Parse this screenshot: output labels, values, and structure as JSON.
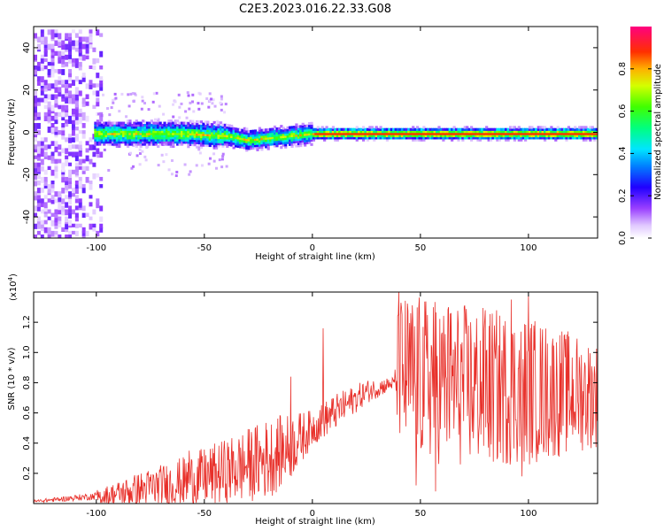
{
  "title": "C2E3.2023.016.22.33.G08",
  "chart_data": [
    {
      "type": "heatmap",
      "xlabel": "Height of straight line (km)",
      "ylabel": "Frequency (Hz)",
      "xlim": [
        -129,
        132
      ],
      "ylim": [
        -50,
        50
      ],
      "xticks": [
        -100,
        -50,
        0,
        50,
        100
      ],
      "yticks": [
        -40,
        -20,
        0,
        20,
        40
      ],
      "colorbar": {
        "label": "Normalized spectral amplitude",
        "range": [
          0,
          1
        ],
        "ticks": [
          "0.0",
          "0.2",
          "0.4",
          "0.6",
          "0.8"
        ],
        "colormap": [
          "#ffffff",
          "#d9b3ff",
          "#8a2be2",
          "#0000ff",
          "#00ccff",
          "#00ff66",
          "#ccff00",
          "#ff9900",
          "#ff0000",
          "#ff0099"
        ]
      },
      "ridge_center_hz": [
        [
          -100,
          0
        ],
        [
          -80,
          0
        ],
        [
          -60,
          0
        ],
        [
          -40,
          -1
        ],
        [
          -30,
          -3
        ],
        [
          -20,
          -2
        ],
        [
          -10,
          -1
        ],
        [
          0,
          0
        ],
        [
          50,
          0
        ],
        [
          132,
          0
        ]
      ],
      "noise_region_km": [
        -129,
        -100
      ]
    },
    {
      "type": "line",
      "xlabel": "Height of straight line (km)",
      "ylabel": "SNR (10 * v/v)",
      "yexponent_label": "(x10",
      "yexponent_power": "4",
      "yexponent_close": ")",
      "xlim": [
        -129,
        132
      ],
      "ylim": [
        0,
        1.4
      ],
      "xticks": [
        -100,
        -50,
        0,
        50,
        100
      ],
      "yticks": [
        0.2,
        0.4,
        0.6,
        0.8,
        1.0,
        1.2
      ],
      "color": "#e8302a",
      "envelope": [
        {
          "x": -129,
          "base": 0.01,
          "amp": 0.02
        },
        {
          "x": -100,
          "base": 0.04,
          "amp": 0.05
        },
        {
          "x": -80,
          "base": 0.09,
          "amp": 0.12
        },
        {
          "x": -60,
          "base": 0.14,
          "amp": 0.17
        },
        {
          "x": -40,
          "base": 0.21,
          "amp": 0.22
        },
        {
          "x": -20,
          "base": 0.3,
          "amp": 0.27
        },
        {
          "x": -10,
          "base": 0.38,
          "amp": 0.22
        },
        {
          "x": 0,
          "base": 0.5,
          "amp": 0.12
        },
        {
          "x": 10,
          "base": 0.6,
          "amp": 0.12
        },
        {
          "x": 25,
          "base": 0.74,
          "amp": 0.08
        },
        {
          "x": 38,
          "base": 0.8,
          "amp": 0.04
        },
        {
          "x": 40,
          "base": 0.85,
          "amp": 0.55
        },
        {
          "x": 70,
          "base": 0.78,
          "amp": 0.55
        },
        {
          "x": 100,
          "base": 0.75,
          "amp": 0.5
        },
        {
          "x": 132,
          "base": 0.72,
          "amp": 0.35
        }
      ],
      "spikes": [
        {
          "x": -57,
          "y": 0.35
        },
        {
          "x": -10,
          "y": 0.84
        },
        {
          "x": 5,
          "y": 1.16
        },
        {
          "x": 40,
          "y": 1.4
        },
        {
          "x": 56,
          "y": 1.3
        },
        {
          "x": 63,
          "y": 1.3
        },
        {
          "x": 80,
          "y": 1.28
        },
        {
          "x": 92,
          "y": 1.35
        },
        {
          "x": 100,
          "y": 1.38
        },
        {
          "x": 48,
          "y": 0.12
        },
        {
          "x": 57,
          "y": 0.08
        },
        {
          "x": 97,
          "y": 0.18
        }
      ]
    }
  ]
}
